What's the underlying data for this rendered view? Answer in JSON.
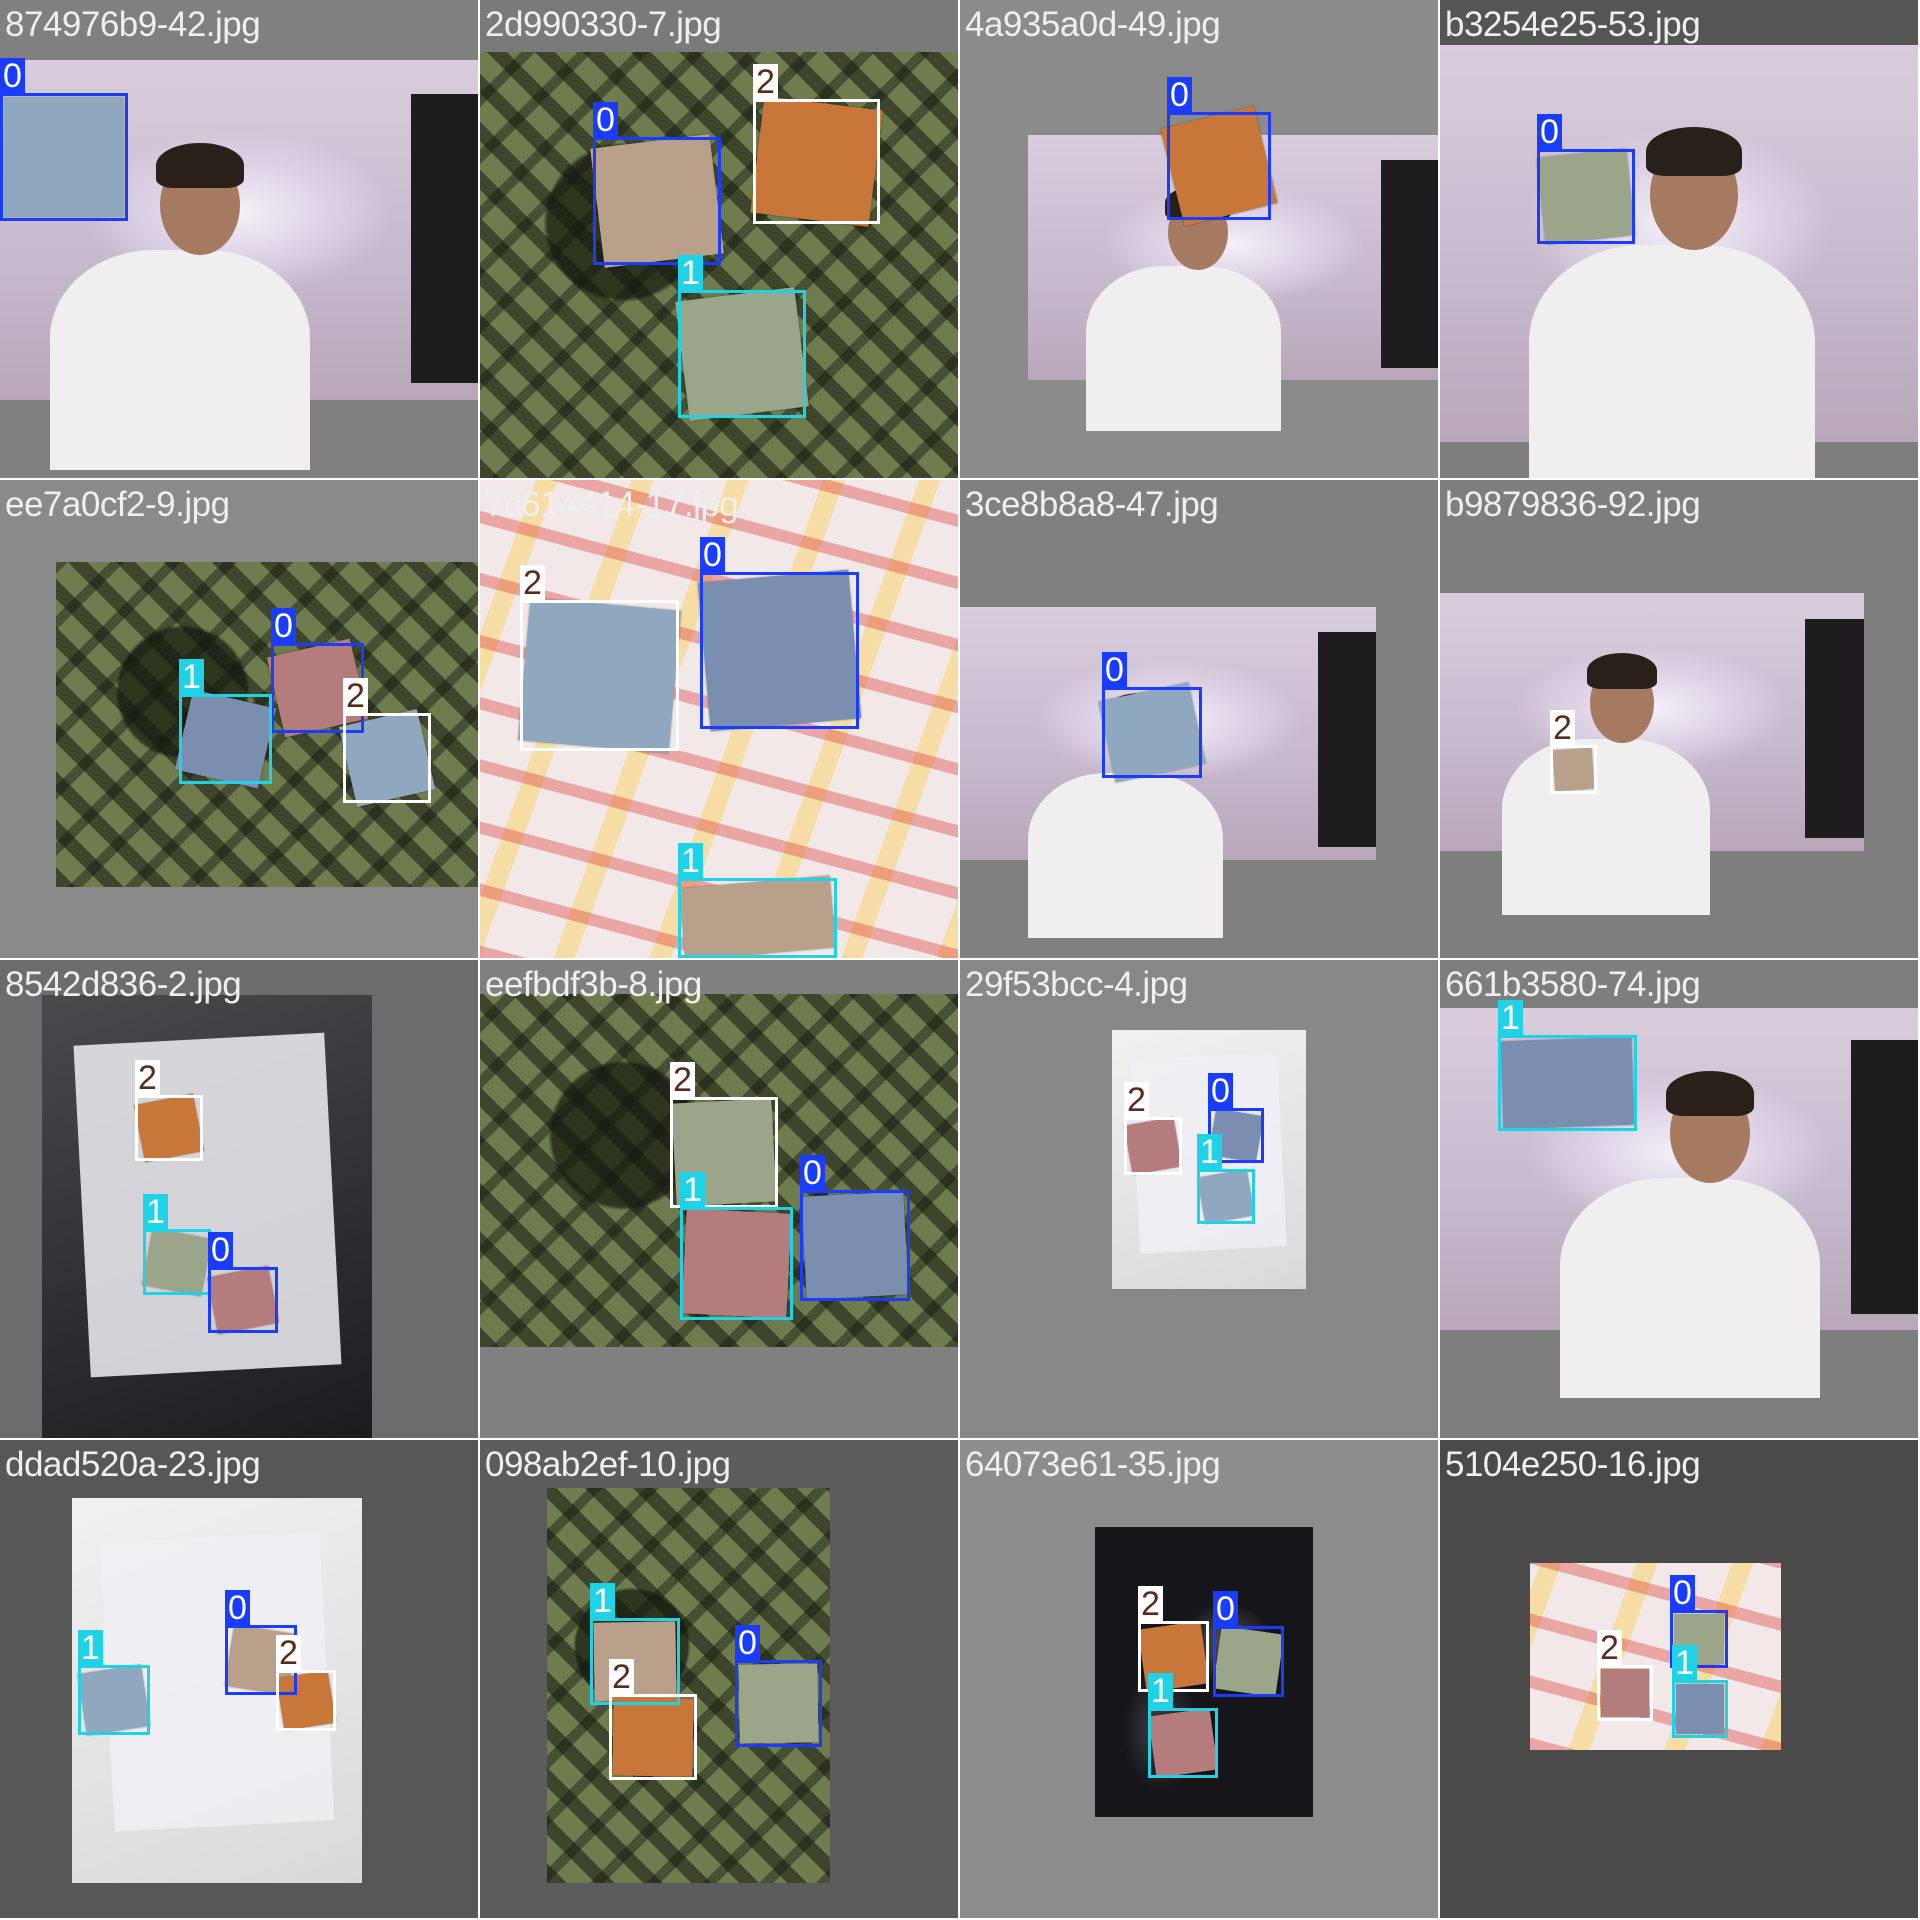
{
  "colors": {
    "class_0": "#1a3cff",
    "class_1": "#1fd2e6",
    "class_2": "#ffffff"
  },
  "tiles": [
    {
      "filename": "874976b9-42.jpg",
      "scene": "room",
      "boxes": [
        {
          "cls": "0"
        }
      ]
    },
    {
      "filename": "2d990330-7.jpg",
      "scene": "carpet",
      "boxes": [
        {
          "cls": "0"
        },
        {
          "cls": "2"
        },
        {
          "cls": "1"
        }
      ]
    },
    {
      "filename": "4a935a0d-49.jpg",
      "scene": "room",
      "boxes": [
        {
          "cls": "0"
        }
      ]
    },
    {
      "filename": "b3254e25-53.jpg",
      "scene": "room",
      "boxes": [
        {
          "cls": "0"
        }
      ]
    },
    {
      "filename": "ee7a0cf2-9.jpg",
      "scene": "carpet",
      "boxes": [
        {
          "cls": "0"
        },
        {
          "cls": "1"
        },
        {
          "cls": "2"
        }
      ]
    },
    {
      "filename": "7c614414-17.jpg",
      "scene": "paper",
      "boxes": [
        {
          "cls": "0"
        },
        {
          "cls": "2"
        },
        {
          "cls": "1"
        }
      ]
    },
    {
      "filename": "3ce8b8a8-47.jpg",
      "scene": "room",
      "boxes": [
        {
          "cls": "0"
        }
      ]
    },
    {
      "filename": "b9879836-92.jpg",
      "scene": "room",
      "boxes": [
        {
          "cls": "2"
        }
      ]
    },
    {
      "filename": "8542d836-2.jpg",
      "scene": "floor",
      "boxes": [
        {
          "cls": "2"
        },
        {
          "cls": "1"
        },
        {
          "cls": "0"
        }
      ]
    },
    {
      "filename": "eefbdf3b-8.jpg",
      "scene": "carpet",
      "boxes": [
        {
          "cls": "2"
        },
        {
          "cls": "1"
        },
        {
          "cls": "0"
        }
      ]
    },
    {
      "filename": "29f53bcc-4.jpg",
      "scene": "white",
      "boxes": [
        {
          "cls": "2"
        },
        {
          "cls": "0"
        },
        {
          "cls": "1"
        }
      ]
    },
    {
      "filename": "661b3580-74.jpg",
      "scene": "room",
      "boxes": [
        {
          "cls": "1"
        }
      ]
    },
    {
      "filename": "ddad520a-23.jpg",
      "scene": "white",
      "boxes": [
        {
          "cls": "1"
        },
        {
          "cls": "0"
        },
        {
          "cls": "2"
        }
      ]
    },
    {
      "filename": "098ab2ef-10.jpg",
      "scene": "carpet",
      "boxes": [
        {
          "cls": "1"
        },
        {
          "cls": "2"
        },
        {
          "cls": "0"
        }
      ]
    },
    {
      "filename": "64073e61-35.jpg",
      "scene": "plastic",
      "boxes": [
        {
          "cls": "2"
        },
        {
          "cls": "0"
        },
        {
          "cls": "1"
        }
      ]
    },
    {
      "filename": "5104e250-16.jpg",
      "scene": "paper",
      "boxes": [
        {
          "cls": "0"
        },
        {
          "cls": "2"
        },
        {
          "cls": "1"
        }
      ]
    }
  ]
}
